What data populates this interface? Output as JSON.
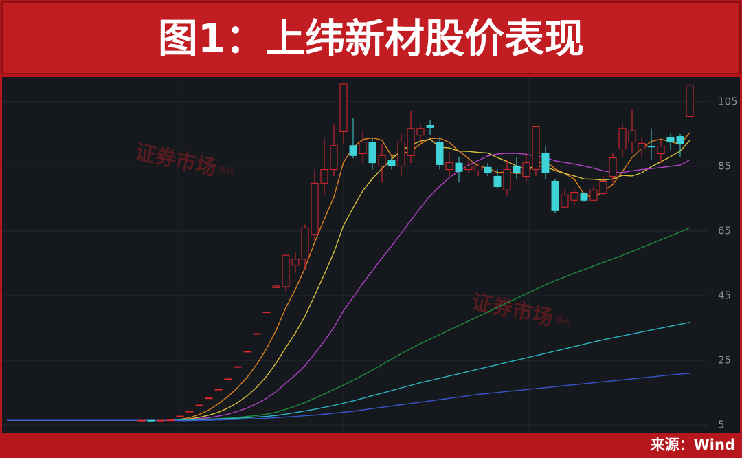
{
  "chart_data": {
    "type": "candlestick",
    "title": "图1：上纬新材股价表现",
    "source": "来源：Wind",
    "watermark": "证券市场",
    "watermark_sub": "周刊",
    "categories": [
      null,
      null,
      null,
      null,
      null,
      null,
      null,
      null,
      null,
      null,
      null,
      null,
      null,
      null,
      null,
      null,
      null,
      null,
      null,
      null,
      null,
      null,
      null,
      null,
      null,
      null,
      null,
      null,
      null,
      null,
      null,
      null,
      null,
      null,
      null,
      null,
      null,
      null,
      null,
      null,
      null,
      null,
      null,
      null,
      null,
      null,
      null,
      null,
      null,
      null,
      null,
      null,
      null,
      null,
      null,
      null,
      null,
      null,
      null,
      null,
      null,
      null,
      null,
      null,
      null,
      null,
      null,
      null,
      null,
      null,
      null,
      null
    ],
    "open": [
      null,
      null,
      null,
      null,
      null,
      null,
      null,
      null,
      null,
      null,
      null,
      null,
      null,
      null,
      6.4,
      6.5,
      6.4,
      6.5,
      7.8,
      9.3,
      11.2,
      13.4,
      16.1,
      19.3,
      23.1,
      27.8,
      33.3,
      40.0,
      47.5,
      47.8,
      54.4,
      56.3,
      64.0,
      79.8,
      84.0,
      95.7,
      91.4,
      88.9,
      92.5,
      85.1,
      86.8,
      85.1,
      88.3,
      94.6,
      97.6,
      92.5,
      84.0,
      86.0,
      84.0,
      83.6,
      84.7,
      81.9,
      77.7,
      85.1,
      81.9,
      84.0,
      88.9,
      80.4,
      72.4,
      74.5,
      76.6,
      74.5,
      76.6,
      81.9,
      90.4,
      92.5,
      90.4,
      91.2,
      88.9,
      94.0,
      94.2,
      100.4
    ],
    "high": [
      null,
      null,
      null,
      null,
      null,
      null,
      null,
      null,
      null,
      null,
      null,
      null,
      null,
      null,
      6.6,
      6.6,
      6.6,
      6.7,
      7.8,
      9.3,
      11.2,
      13.4,
      16.1,
      19.3,
      23.1,
      27.8,
      33.3,
      40.0,
      48.3,
      57.6,
      58.5,
      67.0,
      84.0,
      93.6,
      97.8,
      110.5,
      99.9,
      96.0,
      94.0,
      92.0,
      88.0,
      95.0,
      102.0,
      98.0,
      99.3,
      94.0,
      89.0,
      88.0,
      87.0,
      86.0,
      86.0,
      84.0,
      87.0,
      88.0,
      89.0,
      97.4,
      91.4,
      81.0,
      78.0,
      78.0,
      77.0,
      79.0,
      82.0,
      89.0,
      98.0,
      102.5,
      94.0,
      96.7,
      93.0,
      95.0,
      95.0,
      110.5
    ],
    "low": [
      null,
      null,
      null,
      null,
      null,
      null,
      null,
      null,
      null,
      null,
      null,
      null,
      null,
      null,
      6.3,
      6.3,
      6.3,
      6.4,
      7.8,
      9.3,
      11.2,
      13.4,
      16.1,
      19.3,
      23.1,
      27.8,
      33.3,
      40.0,
      47.3,
      46.0,
      52.0,
      52.9,
      62.0,
      76.0,
      82.0,
      92.0,
      87.5,
      86.0,
      84.0,
      80.0,
      84.0,
      82.0,
      86.0,
      92.0,
      94.6,
      84.0,
      82.0,
      80.0,
      83.0,
      82.0,
      82.0,
      78.0,
      76.0,
      81.0,
      80.0,
      82.0,
      81.0,
      70.5,
      72.0,
      73.0,
      74.0,
      74.0,
      76.0,
      80.0,
      88.0,
      89.0,
      88.0,
      87.0,
      86.0,
      90.0,
      88.0,
      100.3
    ],
    "close": [
      null,
      null,
      null,
      null,
      null,
      null,
      null,
      null,
      null,
      null,
      null,
      null,
      null,
      null,
      6.5,
      6.4,
      6.5,
      6.6,
      7.8,
      9.3,
      11.2,
      13.4,
      16.1,
      19.3,
      23.1,
      27.8,
      33.3,
      40.0,
      48.0,
      57.5,
      56.3,
      66.0,
      79.8,
      84.0,
      91.4,
      110.5,
      88.3,
      92.5,
      86.1,
      88.3,
      85.1,
      92.5,
      96.7,
      96.7,
      97.0,
      85.5,
      86.1,
      83.4,
      85.1,
      85.1,
      83.0,
      78.7,
      84.0,
      83.0,
      86.1,
      97.4,
      83.0,
      71.3,
      76.2,
      77.0,
      74.5,
      77.7,
      80.4,
      87.6,
      96.7,
      96.0,
      92.1,
      91.0,
      91.2,
      92.5,
      92.0,
      110.1
    ],
    "up_color": "#e0282e",
    "down_color": "#3fd3d8",
    "lines": [
      {
        "color": "#e0821f",
        "values": [
          6.5,
          6.5,
          6.5,
          6.5,
          6.5,
          6.5,
          6.5,
          6.5,
          6.5,
          6.5,
          6.5,
          6.5,
          6.5,
          6.5,
          6.5,
          6.5,
          6.5,
          6.5,
          6.8,
          7.3,
          8.3,
          9.7,
          11.6,
          13.9,
          16.6,
          19.9,
          23.9,
          28.7,
          34.4,
          41.3,
          47.0,
          53.6,
          61.5,
          68.7,
          75.5,
          86.3,
          90.8,
          93.3,
          93.8,
          93.1,
          88.1,
          88.9,
          89.7,
          91.9,
          93.6,
          93.7,
          92.4,
          89.7,
          87.4,
          85.0,
          84.5,
          83.1,
          83.2,
          82.8,
          83.0,
          85.8,
          86.7,
          84.2,
          82.8,
          81.0,
          76.4,
          75.3,
          77.2,
          79.4,
          83.4,
          87.7,
          90.6,
          92.7,
          93.4,
          92.6,
          91.8,
          95.4
        ]
      },
      {
        "color": "#d8c23c",
        "values": [
          6.5,
          6.5,
          6.5,
          6.5,
          6.5,
          6.5,
          6.5,
          6.5,
          6.5,
          6.5,
          6.5,
          6.5,
          6.5,
          6.5,
          6.5,
          6.5,
          6.5,
          6.5,
          6.6,
          6.9,
          7.4,
          8.1,
          9.0,
          10.3,
          12.0,
          14.1,
          16.8,
          20.1,
          24.2,
          29.0,
          33.5,
          38.7,
          45.1,
          51.6,
          58.4,
          66.7,
          72.2,
          77.4,
          81.2,
          84.3,
          87.2,
          89.9,
          91.5,
          92.8,
          93.4,
          90.9,
          90.7,
          89.7,
          89.6,
          89.3,
          89.1,
          87.7,
          86.5,
          85.1,
          84.0,
          85.2,
          84.9,
          83.7,
          82.8,
          82.0,
          81.1,
          81.0,
          80.7,
          81.1,
          82.2,
          82.0,
          83.0,
          84.9,
          86.4,
          88.0,
          89.7,
          93.0
        ]
      },
      {
        "color": "#b044c8",
        "values": [
          6.5,
          6.5,
          6.5,
          6.5,
          6.5,
          6.5,
          6.5,
          6.5,
          6.5,
          6.5,
          6.5,
          6.5,
          6.5,
          6.5,
          6.5,
          6.5,
          6.5,
          6.5,
          6.6,
          6.7,
          7.0,
          7.3,
          7.8,
          8.4,
          9.3,
          10.3,
          11.7,
          13.3,
          15.4,
          18.0,
          20.5,
          23.4,
          27.1,
          31.0,
          35.2,
          40.4,
          44.5,
          48.8,
          52.7,
          56.7,
          60.4,
          64.3,
          68.3,
          72.2,
          75.9,
          78.8,
          81.5,
          83.6,
          85.4,
          86.8,
          88.2,
          88.8,
          89.0,
          89.0,
          88.7,
          88.1,
          87.8,
          86.7,
          86.2,
          85.7,
          85.1,
          84.4,
          83.6,
          83.1,
          83.1,
          83.6,
          84.0,
          84.3,
          84.6,
          85.0,
          85.4,
          87.0
        ]
      },
      {
        "color": "#1f8c3e",
        "values": [
          6.5,
          6.5,
          6.5,
          6.5,
          6.5,
          6.5,
          6.5,
          6.5,
          6.5,
          6.5,
          6.5,
          6.5,
          6.5,
          6.5,
          6.5,
          6.5,
          6.5,
          6.5,
          6.6,
          6.7,
          6.8,
          6.9,
          7.0,
          7.2,
          7.4,
          7.7,
          8.0,
          8.4,
          9.0,
          9.9,
          10.9,
          12.0,
          13.3,
          14.6,
          16.0,
          17.4,
          18.9,
          20.4,
          22.0,
          23.7,
          25.4,
          27.1,
          28.7,
          30.2,
          31.6,
          33.0,
          34.4,
          35.8,
          37.2,
          38.6,
          40.0,
          41.4,
          42.8,
          44.2,
          45.6,
          47.0,
          48.4,
          49.6,
          50.8,
          52.0,
          53.1,
          54.2,
          55.3,
          56.4,
          57.5,
          58.7,
          59.9,
          61.1,
          62.3,
          63.5,
          64.7,
          66.0
        ]
      },
      {
        "color": "#2bb3c2",
        "values": [
          6.5,
          6.5,
          6.5,
          6.5,
          6.5,
          6.5,
          6.5,
          6.5,
          6.5,
          6.5,
          6.5,
          6.5,
          6.5,
          6.5,
          6.5,
          6.5,
          6.5,
          6.5,
          6.6,
          6.6,
          6.7,
          6.8,
          6.9,
          7.0,
          7.1,
          7.3,
          7.5,
          7.7,
          8.0,
          8.4,
          8.9,
          9.4,
          9.9,
          10.5,
          11.1,
          11.8,
          12.5,
          13.3,
          14.1,
          14.9,
          15.7,
          16.5,
          17.3,
          18.1,
          18.8,
          19.5,
          20.2,
          20.9,
          21.6,
          22.3,
          23.0,
          23.7,
          24.4,
          25.1,
          25.8,
          26.5,
          27.2,
          27.9,
          28.6,
          29.3,
          30.0,
          30.7,
          31.4,
          32.0,
          32.6,
          33.2,
          33.8,
          34.4,
          35.0,
          35.6,
          36.2,
          36.8
        ]
      },
      {
        "color": "#3a56cc",
        "values": [
          6.5,
          6.5,
          6.5,
          6.5,
          6.5,
          6.5,
          6.5,
          6.5,
          6.5,
          6.5,
          6.5,
          6.5,
          6.5,
          6.5,
          6.5,
          6.5,
          6.5,
          6.5,
          6.4,
          6.4,
          6.5,
          6.5,
          6.6,
          6.7,
          6.8,
          6.9,
          7.0,
          7.1,
          7.3,
          7.5,
          7.7,
          7.9,
          8.1,
          8.4,
          8.7,
          9.0,
          9.3,
          9.7,
          10.1,
          10.5,
          10.9,
          11.3,
          11.7,
          12.1,
          12.5,
          12.9,
          13.3,
          13.7,
          14.1,
          14.5,
          14.8,
          15.1,
          15.4,
          15.7,
          16.0,
          16.3,
          16.6,
          16.9,
          17.2,
          17.5,
          17.8,
          18.1,
          18.4,
          18.7,
          19.0,
          19.3,
          19.6,
          19.9,
          20.2,
          20.5,
          20.8,
          21.0
        ]
      }
    ],
    "ylim": [
      2.5,
      112.6
    ],
    "yticks": [
      5,
      25,
      45,
      65,
      85,
      105
    ],
    "grid": true
  }
}
